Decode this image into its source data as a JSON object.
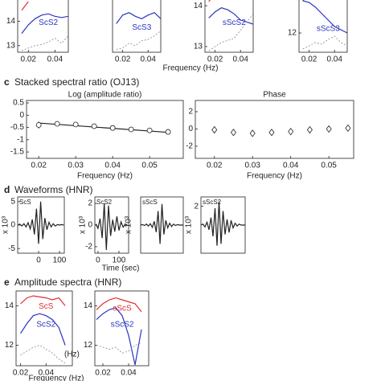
{
  "figure": {
    "top_xlabel": "Frequency (Hz)",
    "panels": [
      {
        "letter": "c",
        "title": "Stacked spectral ratio (OJ13)"
      },
      {
        "letter": "d",
        "title": "Waveforms (HNR)"
      },
      {
        "letter": "e",
        "title": "Amplitude spectra (HNR)"
      }
    ],
    "time_label": "Time (sec)",
    "bottom_xlabel": "Frequency (Hz)"
  },
  "chart_data": [
    {
      "type": "line",
      "x": [
        0.015,
        0.02,
        0.025,
        0.03,
        0.035,
        0.04,
        0.045,
        0.05
      ],
      "xlim": [
        0.012,
        0.05
      ],
      "ylim": [
        12.73,
        14.9
      ],
      "xticks": [
        0.02,
        0.04
      ],
      "yticks": [
        13,
        14
      ],
      "series": [
        {
          "color": "#e03030",
          "values": [
            14.45,
            14.8,
            null,
            null,
            null,
            null,
            null,
            null
          ]
        },
        {
          "name": "ScS2",
          "color": "#2a35c0",
          "values": [
            13.5,
            13.85,
            14.1,
            14.25,
            14.3,
            14.2,
            14.15,
            14.2
          ]
        },
        {
          "color": "#888888",
          "dash": true,
          "values": [
            12.8,
            12.9,
            13.0,
            13.05,
            13.15,
            13.3,
            13.1,
            13.4
          ]
        }
      ]
    },
    {
      "type": "line",
      "x": [
        0.015,
        0.02,
        0.025,
        0.03,
        0.035,
        0.04,
        0.045,
        0.05
      ],
      "xlim": [
        0.012,
        0.05
      ],
      "ylim": [
        12.73,
        14.9
      ],
      "xticks": [
        0.02,
        0.04
      ],
      "series": [
        {
          "name": "ScS3",
          "color": "#2a35c0",
          "values": [
            13.9,
            14.25,
            14.35,
            14.2,
            14.1,
            14.25,
            14.35,
            14.1
          ]
        },
        {
          "color": "#888888",
          "dash": true,
          "values": [
            12.85,
            12.9,
            13.1,
            13.0,
            13.2,
            13.25,
            13.4,
            13.6
          ]
        }
      ]
    },
    {
      "type": "line",
      "x": [
        0.015,
        0.02,
        0.025,
        0.03,
        0.035,
        0.04,
        0.045,
        0.05
      ],
      "xlim": [
        0.012,
        0.05
      ],
      "ylim": [
        12.86,
        14.16
      ],
      "xticks": [
        0.02,
        0.04
      ],
      "yticks": [
        13,
        14
      ],
      "series": [
        {
          "color": "#e03030",
          "values": [
            14.1,
            14.3,
            null,
            null,
            null,
            null,
            null,
            null
          ]
        },
        {
          "name": "sScS2",
          "color": "#2a35c0",
          "values": [
            13.7,
            13.85,
            13.95,
            13.9,
            13.8,
            13.65,
            13.6,
            13.55
          ]
        },
        {
          "color": "#888888",
          "dash": true,
          "values": [
            12.9,
            13.0,
            13.1,
            13.15,
            13.2,
            13.4,
            13.6,
            13.8
          ]
        }
      ]
    },
    {
      "type": "line",
      "x": [
        0.015,
        0.02,
        0.025,
        0.03,
        0.035,
        0.04,
        0.045,
        0.05
      ],
      "xlim": [
        0.012,
        0.05
      ],
      "ylim": [
        11.4,
        13.05
      ],
      "xticks": [
        0.02,
        0.04
      ],
      "yticks": [
        12
      ],
      "series": [
        {
          "color": "#e03030",
          "values": [
            13.0,
            13.2,
            null,
            null,
            null,
            null,
            null,
            null
          ]
        },
        {
          "name": "sScS3",
          "color": "#2a35c0",
          "values": [
            13.0,
            12.95,
            12.8,
            12.6,
            12.4,
            12.2,
            12.1,
            12.0
          ]
        },
        {
          "color": "#888888",
          "dash": true,
          "values": [
            11.5,
            11.6,
            11.7,
            11.65,
            11.8,
            11.9,
            11.7,
            11.6
          ]
        }
      ]
    },
    {
      "type": "errorbar",
      "title": "Log (amplitude ratio)",
      "xlabel": "Frequency (Hz)",
      "marker": "circle",
      "x": [
        0.02,
        0.025,
        0.03,
        0.035,
        0.04,
        0.045,
        0.05,
        0.055
      ],
      "values": [
        -0.4,
        -0.35,
        -0.38,
        -0.45,
        -0.52,
        -0.58,
        -0.62,
        -0.68
      ],
      "errors": [
        0.15,
        0.08,
        0.06,
        0.06,
        0.06,
        0.07,
        0.08,
        0.1
      ],
      "trend_x": [
        0.02,
        0.055
      ],
      "trend": [
        -0.32,
        -0.7
      ],
      "xlim": [
        0.0167,
        0.0591
      ],
      "ylim": [
        -1.76,
        0.6
      ],
      "xticks": [
        0.02,
        0.03,
        0.04,
        0.05
      ],
      "yticks": [
        0.5,
        0,
        -0.5,
        -1,
        -1.5
      ]
    },
    {
      "type": "errorbar",
      "title": "Phase",
      "xlabel": "Frequency (Hz)",
      "marker": "diamond",
      "x": [
        0.02,
        0.025,
        0.03,
        0.035,
        0.04,
        0.045,
        0.05,
        0.055
      ],
      "values": [
        -0.1,
        -0.4,
        -0.5,
        -0.4,
        -0.3,
        -0.1,
        0,
        0.1
      ],
      "errors": [
        0.4,
        0.3,
        0.3,
        0.3,
        0.3,
        0.3,
        0.3,
        0.3
      ],
      "xlim": [
        0.015,
        0.0565
      ],
      "ylim": [
        -3.4,
        3.3
      ],
      "xticks": [
        0.02,
        0.03,
        0.04,
        0.05
      ],
      "yticks": [
        2,
        0,
        -2
      ]
    },
    {
      "type": "line",
      "label": "ScS",
      "ylabel": "x 10³",
      "x": [
        -100,
        -90,
        -80,
        -70,
        -60,
        -50,
        -40,
        -30,
        -20,
        -10,
        0,
        10,
        20,
        30,
        40,
        50,
        60,
        70,
        80,
        90,
        100,
        110,
        120
      ],
      "xlim": [
        -100,
        123
      ],
      "ylim": [
        -6,
        6
      ],
      "xticks": [
        0,
        100
      ],
      "yticks": [
        -5,
        0,
        5
      ],
      "series": [
        {
          "color": "#222222",
          "values": [
            0,
            0.2,
            -0.2,
            0.3,
            -0.4,
            0.5,
            -0.8,
            1.2,
            -2,
            3.5,
            -4,
            5,
            -3,
            1.5,
            -1,
            0.6,
            -0.4,
            0.3,
            -0.2,
            0.1,
            0,
            0.1,
            0
          ]
        }
      ]
    },
    {
      "type": "line",
      "label": "ScS2",
      "ylabel": "x 10³",
      "x": [
        -10,
        0,
        10,
        20,
        30,
        40,
        50,
        60,
        70,
        80,
        90,
        100,
        110,
        120,
        130,
        140
      ],
      "xlim": [
        -15,
        146
      ],
      "ylim": [
        -2.6,
        2.6
      ],
      "xticks": [
        0,
        100
      ],
      "yticks": [
        -2,
        0,
        2
      ],
      "series": [
        {
          "color": "#222222",
          "values": [
            0.1,
            -0.3,
            0.6,
            -1.2,
            2.0,
            -2.3,
            1.8,
            -1.0,
            0.5,
            -0.6,
            0.8,
            -0.5,
            0.3,
            -0.2,
            0.1,
            0
          ]
        }
      ]
    },
    {
      "type": "line",
      "label": "sScS",
      "ylabel": "x 10³",
      "x": [
        -100,
        -90,
        -80,
        -70,
        -60,
        -50,
        -40,
        -30,
        -20,
        -10,
        0,
        10,
        20,
        30,
        40,
        50,
        60,
        70,
        80,
        90,
        100,
        110,
        120
      ],
      "xlim": [
        -100,
        120
      ],
      "ylim": [
        -6,
        6
      ],
      "series": [
        {
          "color": "#222222",
          "values": [
            0,
            0.1,
            -0.1,
            0.2,
            -0.2,
            0.3,
            -0.5,
            0.8,
            -1.5,
            3,
            -4,
            4.5,
            -2,
            1,
            -0.6,
            0.4,
            -0.3,
            0.2,
            -0.1,
            0.1,
            0,
            0,
            0
          ]
        }
      ]
    },
    {
      "type": "line",
      "label": "sScS2",
      "ylabel": "x 10³",
      "x": [
        -100,
        -90,
        -80,
        -70,
        -60,
        -50,
        -40,
        -30,
        -20,
        -10,
        0,
        10,
        20,
        30,
        40,
        50,
        60,
        70,
        80,
        90,
        100,
        110,
        120
      ],
      "xlim": [
        -100,
        120
      ],
      "ylim": [
        -3,
        3
      ],
      "yticks": [
        2
      ],
      "series": [
        {
          "color": "#222222",
          "values": [
            0,
            0.1,
            -0.2,
            0.3,
            -0.5,
            0.8,
            -1.2,
            1.8,
            -2.2,
            2.5,
            -2.0,
            1.5,
            -1,
            0.6,
            -0.8,
            0.5,
            -0.3,
            0.2,
            -0.1,
            0.1,
            0,
            0,
            0
          ]
        }
      ]
    },
    {
      "type": "line",
      "annotation": "(Hz)",
      "x": [
        0.02,
        0.025,
        0.03,
        0.035,
        0.04,
        0.045,
        0.05,
        0.055
      ],
      "xlim": [
        0.0165,
        0.0606
      ],
      "ylim": [
        10.96,
        14.75
      ],
      "xticks": [
        0.02,
        0.04
      ],
      "yticks": [
        12,
        14
      ],
      "series": [
        {
          "name": "ScS",
          "color": "#e03030",
          "values": [
            14.1,
            14.4,
            14.5,
            14.45,
            14.4,
            14.3,
            14.4,
            14.0
          ]
        },
        {
          "name": "ScS2",
          "color": "#2a35c0",
          "values": [
            12.6,
            13.1,
            13.5,
            13.6,
            13.5,
            13.3,
            12.9,
            12.0
          ]
        },
        {
          "color": "#888888",
          "dash": true,
          "values": [
            11.5,
            11.7,
            11.9,
            12.0,
            11.8,
            11.6,
            11.3,
            11.1
          ]
        }
      ]
    },
    {
      "type": "line",
      "x": [
        0.015,
        0.02,
        0.025,
        0.03,
        0.035,
        0.04,
        0.045,
        0.05
      ],
      "xlim": [
        0.01375,
        0.0556
      ],
      "ylim": [
        10.96,
        14.75
      ],
      "xticks": [
        0.02,
        0.04
      ],
      "yticks": [
        12,
        14
      ],
      "series": [
        {
          "name": "sScS",
          "color": "#e03030",
          "values": [
            13.8,
            14.1,
            14.3,
            14.4,
            14.3,
            14.2,
            14.1,
            13.7
          ]
        },
        {
          "name": "sScS2",
          "color": "#2a35c0",
          "values": [
            13.3,
            13.6,
            13.8,
            13.9,
            13.5,
            12.5,
            11.0,
            12.8
          ]
        },
        {
          "color": "#888888",
          "dash": true,
          "values": [
            12.0,
            11.9,
            11.8,
            11.9,
            11.6,
            11.7,
            12.0,
            12.1
          ]
        }
      ]
    }
  ]
}
